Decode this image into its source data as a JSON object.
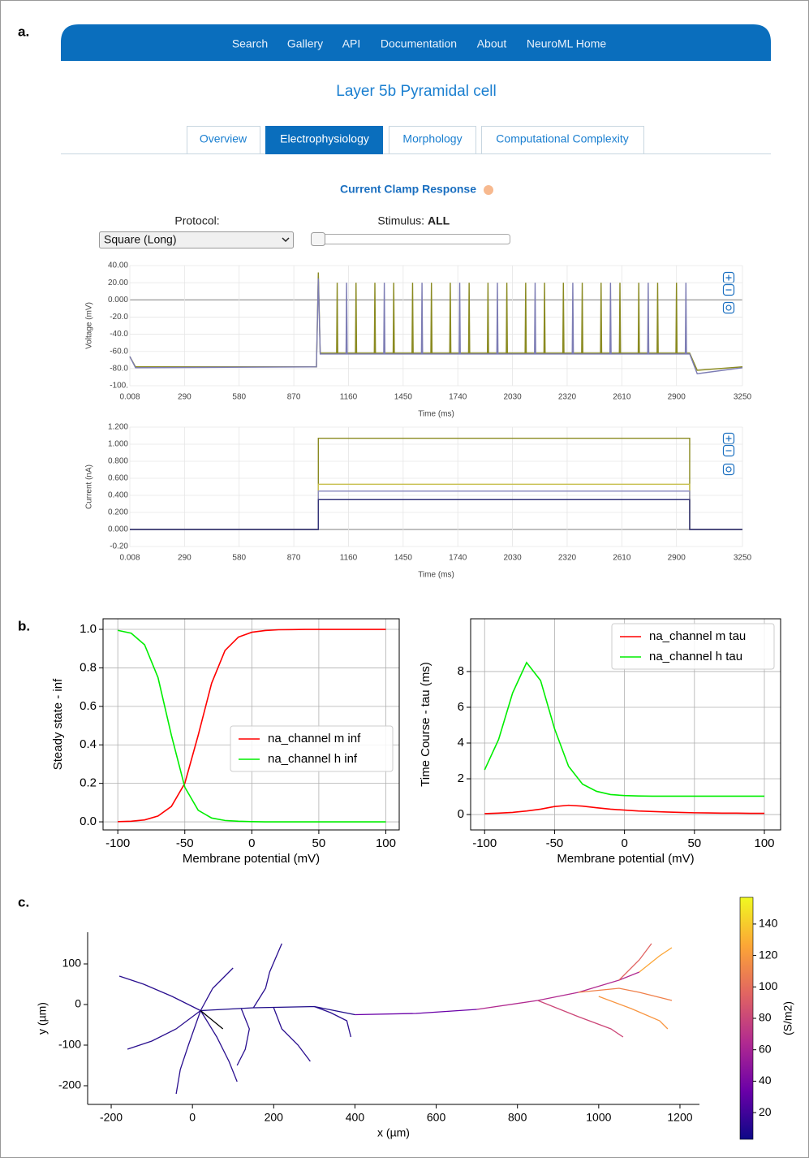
{
  "panel_labels": [
    "a.",
    "b.",
    "c."
  ],
  "nav": [
    "Search",
    "Gallery",
    "API",
    "Documentation",
    "About",
    "NeuroML Home"
  ],
  "title": "Layer 5b Pyramidal cell",
  "tabs": [
    "Overview",
    "Electrophysiology",
    "Morphology",
    "Computational Complexity"
  ],
  "section_title": "Current Clamp Response",
  "protocol_label": "Protocol:",
  "protocol_value": "Square (Long)",
  "stimulus_label": "Stimulus:",
  "stimulus_value": "ALL",
  "chart_data": [
    {
      "type": "line",
      "xlabel": "Time (ms)",
      "ylabel": "Voltage (mV)",
      "grid": true,
      "xlim": [
        0.008,
        3250
      ],
      "xticks": [
        0.008,
        290,
        580,
        870,
        1160,
        1450,
        1740,
        2030,
        2320,
        2610,
        2900,
        3250
      ],
      "ylim": [
        -100,
        40
      ],
      "yticks": [
        {
          "value": -100,
          "label": "-100."
        },
        {
          "value": -80,
          "label": "-80.0"
        },
        {
          "value": -60,
          "label": "-60.0"
        },
        {
          "value": -40,
          "label": "-40.0"
        },
        {
          "value": -20,
          "label": "-20.0"
        },
        {
          "value": 0,
          "label": "0.000"
        },
        {
          "value": 20,
          "label": "20.00"
        },
        {
          "value": 40,
          "label": "40.00"
        }
      ],
      "series": [
        {
          "color": "#8a8a20",
          "x": [
            0.008,
            30,
            990,
            1000,
            1010,
            1097,
            1100,
            1103,
            1197,
            1200,
            1203,
            1297,
            1300,
            1303,
            1397,
            1400,
            1403,
            1497,
            1500,
            1503,
            1597,
            1600,
            1603,
            1697,
            1700,
            1703,
            1797,
            1800,
            1803,
            1897,
            1900,
            1903,
            1997,
            2000,
            2003,
            2097,
            2100,
            2103,
            2197,
            2200,
            2203,
            2297,
            2300,
            2303,
            2397,
            2400,
            2403,
            2497,
            2500,
            2503,
            2597,
            2600,
            2603,
            2697,
            2700,
            2703,
            2797,
            2800,
            2803,
            2897,
            2900,
            2903,
            2970,
            3010,
            3250
          ],
          "values": [
            -66,
            -78,
            -78,
            32,
            -62,
            -62,
            20,
            -62,
            -62,
            20,
            -62,
            -62,
            20,
            -62,
            -62,
            20,
            -62,
            -62,
            20,
            -62,
            -62,
            20,
            -62,
            -62,
            20,
            -62,
            -62,
            20,
            -62,
            -62,
            20,
            -62,
            -62,
            20,
            -62,
            -62,
            20,
            -62,
            -62,
            20,
            -62,
            -62,
            20,
            -62,
            -62,
            20,
            -62,
            -62,
            20,
            -62,
            -62,
            20,
            -62,
            -62,
            20,
            -62,
            -62,
            20,
            -62,
            -62,
            20,
            -62,
            -62,
            -82,
            -78
          ]
        },
        {
          "color": "#7c7cb4",
          "x": [
            0.008,
            30,
            990,
            1000,
            1010,
            1147,
            1150,
            1153,
            1347,
            1350,
            1353,
            1547,
            1550,
            1553,
            1747,
            1750,
            1753,
            1947,
            1950,
            1953,
            2147,
            2150,
            2153,
            2347,
            2350,
            2353,
            2547,
            2550,
            2553,
            2747,
            2750,
            2753,
            2947,
            2950,
            2953,
            2970,
            3010,
            3250
          ],
          "values": [
            -66,
            -79,
            -78,
            25,
            -63,
            -63,
            20,
            -63,
            -63,
            20,
            -63,
            -63,
            20,
            -63,
            -63,
            20,
            -63,
            -63,
            20,
            -63,
            -63,
            20,
            -63,
            -63,
            20,
            -63,
            -63,
            20,
            -63,
            -63,
            20,
            -63,
            -63,
            20,
            -63,
            -63,
            -86,
            -79
          ]
        }
      ]
    },
    {
      "type": "line",
      "xlabel": "Time (ms)",
      "ylabel": "Current (nA)",
      "grid": true,
      "xlim": [
        0.008,
        3250
      ],
      "xticks": [
        0.008,
        290,
        580,
        870,
        1160,
        1450,
        1740,
        2030,
        2320,
        2610,
        2900,
        3250
      ],
      "ylim": [
        -0.2,
        1.2
      ],
      "yticks": [
        {
          "value": -0.2,
          "label": "-0.20"
        },
        {
          "value": 0,
          "label": "0.000"
        },
        {
          "value": 0.2,
          "label": "0.200"
        },
        {
          "value": 0.4,
          "label": "0.400"
        },
        {
          "value": 0.6,
          "label": "0.600"
        },
        {
          "value": 0.8,
          "label": "0.800"
        },
        {
          "value": 1,
          "label": "1.000"
        },
        {
          "value": 1.2,
          "label": "1.200"
        }
      ],
      "x": [
        0.008,
        1000,
        1000,
        2970,
        2970,
        3250
      ],
      "series": [
        {
          "color": "#8a8a20",
          "values": [
            0,
            0,
            1.07,
            1.07,
            0,
            0
          ]
        },
        {
          "color": "#c8c050",
          "values": [
            0,
            0,
            0.53,
            0.53,
            0,
            0
          ]
        },
        {
          "color": "#8e8ec0",
          "values": [
            0,
            0,
            0.45,
            0.45,
            0,
            0
          ]
        },
        {
          "color": "#33337a",
          "values": [
            0,
            0,
            0.35,
            0.35,
            0,
            0
          ]
        }
      ]
    },
    {
      "type": "line",
      "xlabel": "Membrane potential (mV)",
      "ylabel": "Steady state - inf",
      "grid": true,
      "legend": "center right",
      "xlim": [
        -111,
        110
      ],
      "xticks": [
        -100,
        -50,
        0,
        50,
        100
      ],
      "ylim": [
        -0.042,
        1.055
      ],
      "yticks": [
        {
          "value": 0,
          "label": "0.0"
        },
        0.2,
        0.4,
        0.6,
        0.8,
        {
          "value": 1,
          "label": "1.0"
        }
      ],
      "x": [
        -100,
        -90,
        -80,
        -70,
        -60,
        -50,
        -40,
        -30,
        -20,
        -10,
        0,
        10,
        20,
        30,
        40,
        50,
        60,
        70,
        80,
        90,
        100
      ],
      "series": [
        {
          "name": "na_channel m inf",
          "color": "#ff0000",
          "values": [
            0.001,
            0.003,
            0.01,
            0.03,
            0.08,
            0.2,
            0.45,
            0.72,
            0.89,
            0.96,
            0.985,
            0.994,
            0.998,
            0.999,
            1,
            1,
            1,
            1,
            1,
            1,
            1
          ]
        },
        {
          "name": "na_channel h inf",
          "color": "#00ee00",
          "values": [
            0.995,
            0.98,
            0.92,
            0.75,
            0.45,
            0.18,
            0.06,
            0.02,
            0.007,
            0.003,
            0.001,
            0,
            0,
            0,
            0,
            0,
            0,
            0,
            0,
            0,
            0
          ]
        }
      ]
    },
    {
      "type": "line",
      "xlabel": "Membrane potential (mV)",
      "ylabel": "Time Course - tau (ms)",
      "grid": true,
      "legend": "upper right",
      "xlim": [
        -110,
        111.6
      ],
      "xticks": [
        -100,
        -50,
        0,
        50,
        100
      ],
      "ylim": [
        -0.86,
        10.95
      ],
      "yticks": [
        0,
        2,
        4,
        6,
        8
      ],
      "x": [
        -100,
        -90,
        -80,
        -70,
        -60,
        -50,
        -40,
        -30,
        -20,
        -10,
        0,
        10,
        20,
        30,
        40,
        50,
        60,
        70,
        80,
        90,
        100
      ],
      "series": [
        {
          "name": "na_channel m tau",
          "color": "#ff0000",
          "values": [
            0.05,
            0.08,
            0.12,
            0.2,
            0.3,
            0.45,
            0.52,
            0.47,
            0.38,
            0.3,
            0.25,
            0.2,
            0.17,
            0.14,
            0.12,
            0.1,
            0.09,
            0.08,
            0.08,
            0.07,
            0.07
          ]
        },
        {
          "name": "na_channel h tau",
          "color": "#00ee00",
          "values": [
            2.5,
            4.2,
            6.8,
            8.5,
            7.5,
            4.8,
            2.7,
            1.7,
            1.3,
            1.12,
            1.06,
            1.04,
            1.03,
            1.03,
            1.03,
            1.03,
            1.03,
            1.03,
            1.03,
            1.03,
            1.03
          ]
        }
      ]
    },
    {
      "type": "morphology",
      "xlabel": "x (µm)",
      "ylabel": "y (µm)",
      "xlim": [
        -258,
        1248
      ],
      "xticks": [
        -200,
        0,
        200,
        400,
        600,
        800,
        1000,
        1200
      ],
      "ylim": [
        -246,
        178
      ],
      "yticks": [
        -200,
        -100,
        0,
        100
      ],
      "branches": [
        {
          "color": "#1f0c8a",
          "x": [
            20,
            150,
            300,
            400
          ],
          "y": [
            -15,
            -8,
            -5,
            -25
          ]
        },
        {
          "color": "#6a00a8",
          "x": [
            400,
            550,
            700
          ],
          "y": [
            -25,
            -22,
            -12
          ]
        },
        {
          "color": "#b12a90",
          "x": [
            700,
            850,
            950,
            1050,
            1100
          ],
          "y": [
            -12,
            10,
            30,
            60,
            80
          ]
        },
        {
          "color": "#e16462",
          "x": [
            1050,
            1100,
            1130
          ],
          "y": [
            60,
            110,
            150
          ]
        },
        {
          "color": "#fca636",
          "x": [
            1100,
            1150,
            1180
          ],
          "y": [
            80,
            120,
            140
          ]
        },
        {
          "color": "#f0804a",
          "x": [
            950,
            1050,
            1100,
            1180
          ],
          "y": [
            30,
            40,
            30,
            10
          ]
        },
        {
          "color": "#cc4778",
          "x": [
            850,
            950,
            1030,
            1060
          ],
          "y": [
            10,
            -30,
            -60,
            -80
          ]
        },
        {
          "color": "#f89540",
          "x": [
            1000,
            1080,
            1150,
            1170
          ],
          "y": [
            20,
            -10,
            -40,
            -60
          ]
        },
        {
          "color": "#2a0f8f",
          "x": [
            20,
            -50,
            -120,
            -180
          ],
          "y": [
            -15,
            20,
            50,
            70
          ]
        },
        {
          "color": "#2a0f8f",
          "x": [
            20,
            -40,
            -100,
            -160
          ],
          "y": [
            -15,
            -60,
            -90,
            -110
          ]
        },
        {
          "color": "#2a0f8f",
          "x": [
            20,
            -10,
            -30,
            -40
          ],
          "y": [
            -15,
            -100,
            -160,
            -220
          ]
        },
        {
          "color": "#2a0f8f",
          "x": [
            20,
            50,
            80,
            100
          ],
          "y": [
            -15,
            40,
            70,
            90
          ]
        },
        {
          "color": "#2a0f8f",
          "x": [
            20,
            60,
            90,
            110
          ],
          "y": [
            -15,
            -80,
            -140,
            -190
          ]
        },
        {
          "color": "#2a0f8f",
          "x": [
            150,
            180,
            190,
            220
          ],
          "y": [
            -8,
            40,
            80,
            150
          ]
        },
        {
          "color": "#2a0f8f",
          "x": [
            120,
            140,
            130,
            110
          ],
          "y": [
            -10,
            -60,
            -110,
            -150
          ]
        },
        {
          "color": "#2a0f8f",
          "x": [
            200,
            220,
            260,
            290
          ],
          "y": [
            -8,
            -60,
            -100,
            -140
          ]
        },
        {
          "color": "#2a0f8f",
          "x": [
            300,
            340,
            380,
            390
          ],
          "y": [
            -5,
            -20,
            -40,
            -80
          ]
        },
        {
          "color": "#000000",
          "x": [
            20,
            75
          ],
          "y": [
            -15,
            -60
          ]
        }
      ],
      "colorbar": {
        "label": "(S/m2)",
        "lim": [
          3,
          157
        ],
        "ticks": [
          20,
          40,
          60,
          80,
          100,
          120,
          140
        ],
        "colormap": [
          "#0d0887",
          "#6a00a8",
          "#b12a90",
          "#e16462",
          "#fca636",
          "#f0f921"
        ]
      }
    }
  ]
}
